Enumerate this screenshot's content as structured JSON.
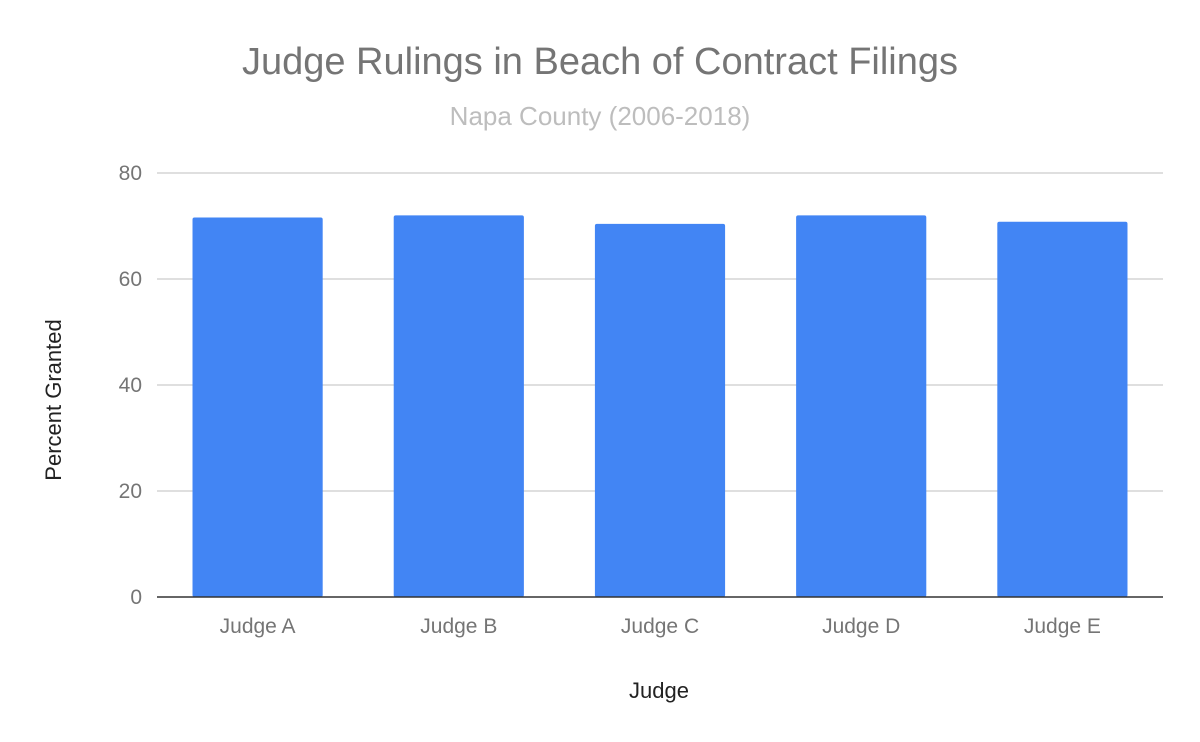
{
  "chart_data": {
    "type": "bar",
    "title": "Judge Rulings in Beach of Contract Filings",
    "subtitle": "Napa County (2006-2018)",
    "xlabel": "Judge",
    "ylabel": "Percent Granted",
    "categories": [
      "Judge A",
      "Judge B",
      "Judge C",
      "Judge D",
      "Judge E"
    ],
    "values": [
      71.6,
      72.0,
      70.4,
      72.0,
      70.8
    ],
    "ylim": [
      0,
      80
    ],
    "yticks": [
      0,
      20,
      40,
      60,
      80
    ],
    "grid": true,
    "legend": "none",
    "bar_color": "#4285f4"
  }
}
